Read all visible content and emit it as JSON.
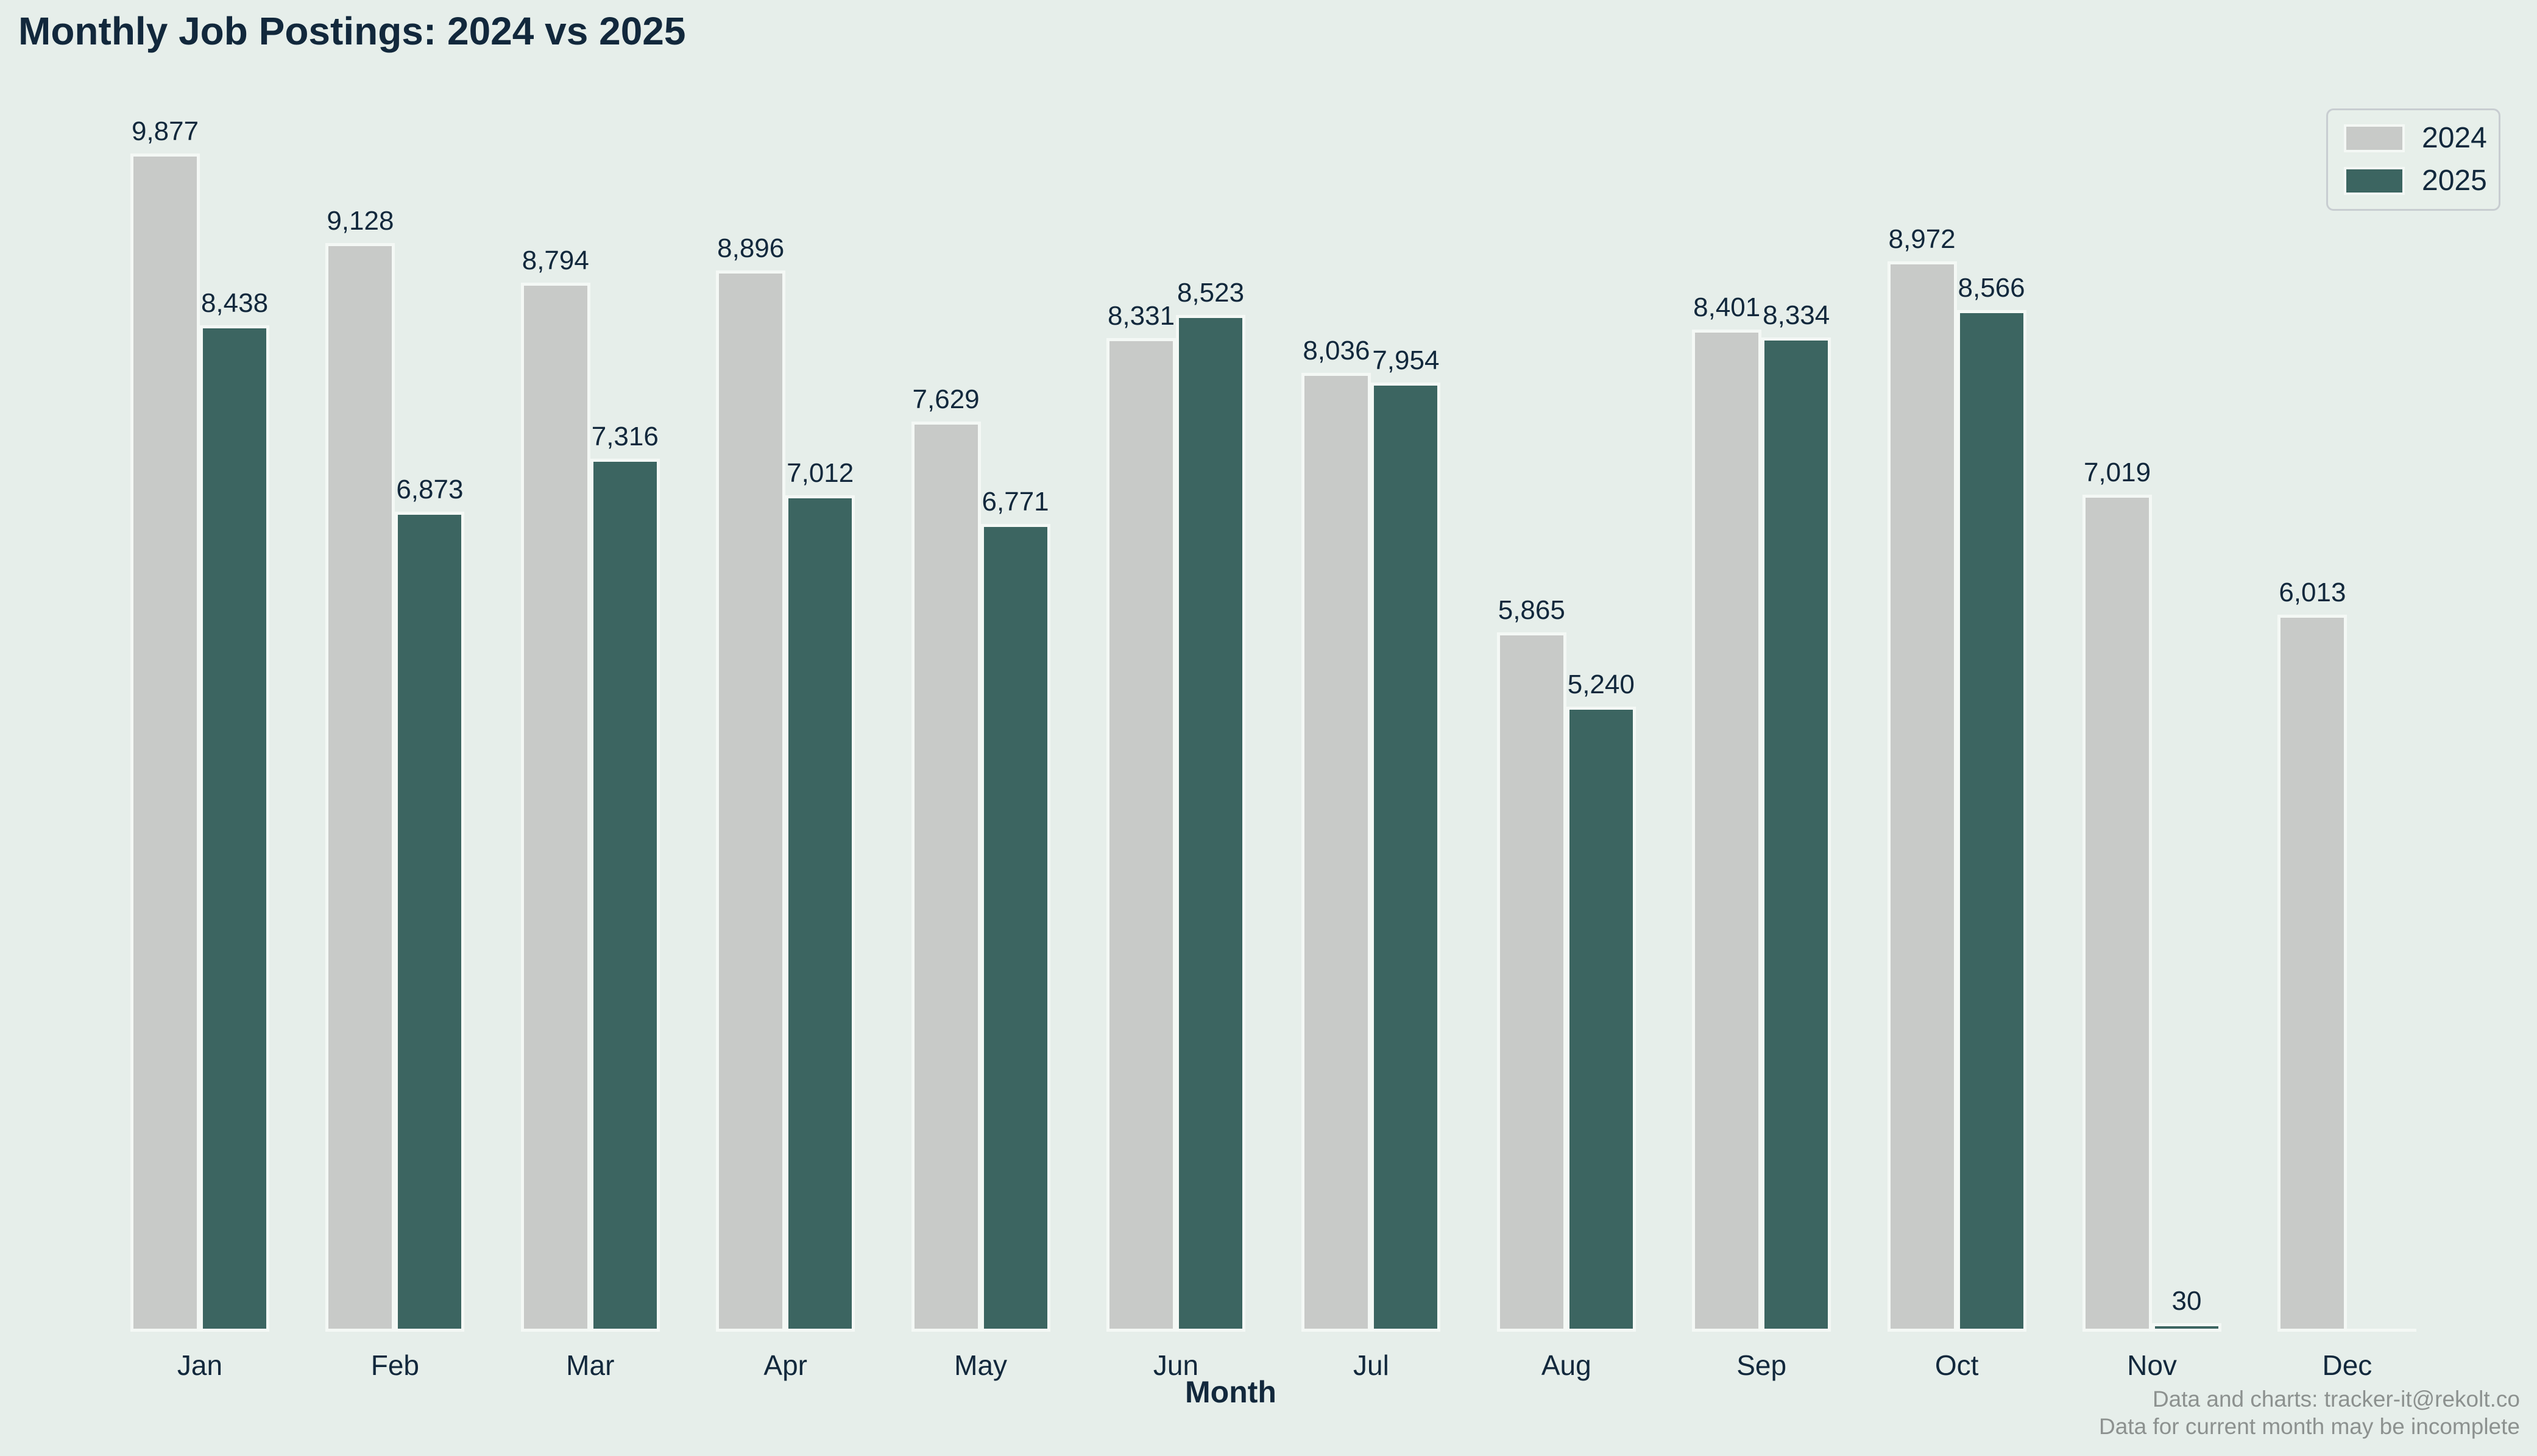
{
  "title": "Monthly Job Postings: 2024 vs 2025",
  "x_axis_title": "Month",
  "legend": {
    "items": [
      {
        "label": "2024",
        "color": "#c8cac8"
      },
      {
        "label": "2025",
        "color": "#3c6561"
      }
    ]
  },
  "footer": {
    "line1": "Data and charts: tracker-it@rekolt.co",
    "line2": "Data for current month may be incomplete"
  },
  "colors": {
    "background": "#e6eeea",
    "bar_2024": "#c8cac8",
    "bar_2025": "#3c6561",
    "bar_border": "#f4f8f5",
    "text": "#12283c",
    "footer_text": "#8c918f",
    "legend_border": "#c8cdd1"
  },
  "chart_data": {
    "type": "bar",
    "title": "Monthly Job Postings: 2024 vs 2025",
    "xlabel": "Month",
    "ylabel": "",
    "categories": [
      "Jan",
      "Feb",
      "Mar",
      "Apr",
      "May",
      "Jun",
      "Jul",
      "Aug",
      "Sep",
      "Oct",
      "Nov",
      "Dec"
    ],
    "series": [
      {
        "name": "2024",
        "color": "#c8cac8",
        "values": [
          9877,
          9128,
          8794,
          8896,
          7629,
          8331,
          8036,
          5865,
          8401,
          8972,
          7019,
          6013
        ]
      },
      {
        "name": "2025",
        "color": "#3c6561",
        "values": [
          8438,
          6873,
          7316,
          7012,
          6771,
          8523,
          7954,
          5240,
          8334,
          8566,
          30,
          null
        ]
      }
    ],
    "value_labels": true,
    "grid": false,
    "ylim": [
      0,
      10400
    ],
    "legend_position": "upper right",
    "note": "Dec 2025 bar is empty (zero-height outline, no label)"
  }
}
